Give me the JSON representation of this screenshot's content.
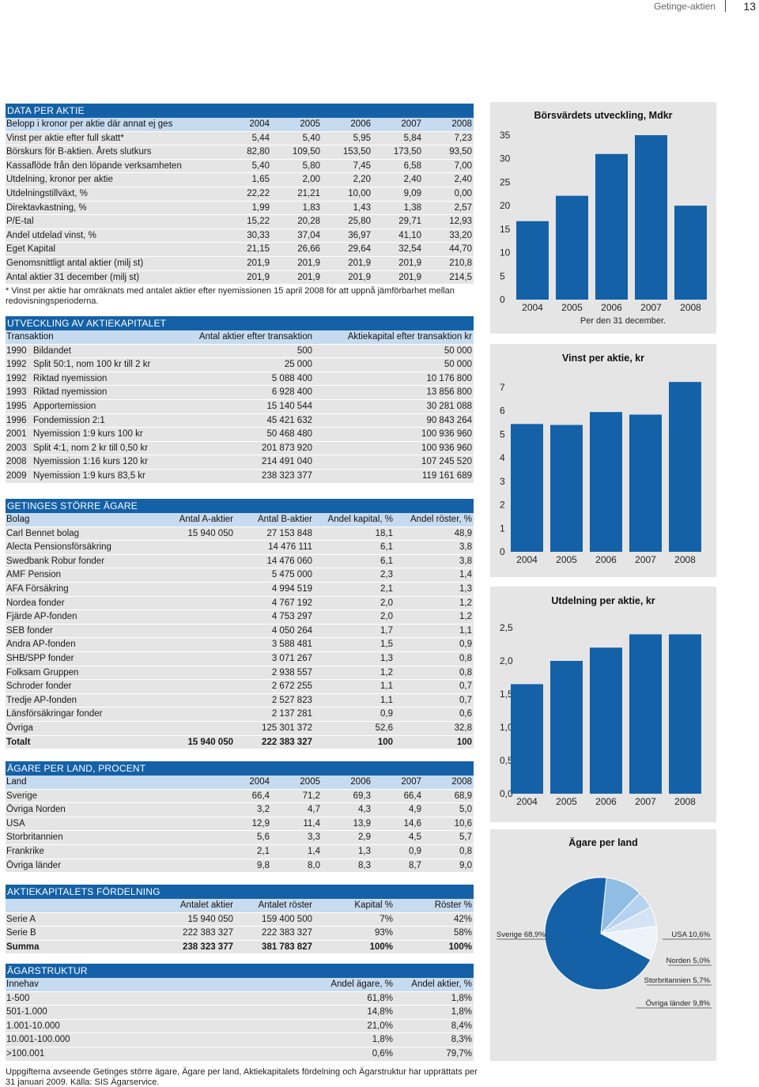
{
  "header": {
    "title": "Getinge-aktien",
    "page_number": "13"
  },
  "data_per_aktie": {
    "title": "DATA PER AKTIE",
    "header": [
      "Belopp i kronor per aktie där annat ej ges",
      "2004",
      "2005",
      "2006",
      "2007",
      "2008"
    ],
    "rows": [
      [
        "Vinst per aktie efter full skatt*",
        "5,44",
        "5,40",
        "5,95",
        "5,84",
        "7,23"
      ],
      [
        "Börskurs för B-aktien. Årets slutkurs",
        "82,80",
        "109,50",
        "153,50",
        "173,50",
        "93,50"
      ],
      [
        "Kassaflöde från den löpande verksamheten",
        "5,40",
        "5,80",
        "7,45",
        "6,58",
        "7,00"
      ],
      [
        "Utdelning, kronor per aktie",
        "1,65",
        "2,00",
        "2,20",
        "2,40",
        "2,40"
      ],
      [
        "Utdelningstillväxt, %",
        "22,22",
        "21,21",
        "10,00",
        "9,09",
        "0,00"
      ],
      [
        "Direktavkastning, %",
        "1,99",
        "1,83",
        "1,43",
        "1,38",
        "2,57"
      ],
      [
        "P/E-tal",
        "15,22",
        "20,28",
        "25,80",
        "29,71",
        "12,93"
      ],
      [
        "Andel utdelad vinst, %",
        "30,33",
        "37,04",
        "36,97",
        "41,10",
        "33,20"
      ],
      [
        "Eget Kapital",
        "21,15",
        "26,66",
        "29,64",
        "32,54",
        "44,70"
      ],
      [
        "Genomsnittligt antal aktier (milj st)",
        "201,9",
        "201,9",
        "201,9",
        "201,9",
        "210,8"
      ],
      [
        "Antal aktier 31 december (milj st)",
        "201,9",
        "201,9",
        "201,9",
        "201,9",
        "214,5"
      ]
    ],
    "footnote": "* Vinst per aktie har omräknats med antalet aktier efter nyemissionen 15 april 2008 för att uppnå jämförbarhet mellan redovisningsperioderna."
  },
  "utveckling": {
    "title": "UTVECKLING AV AKTIEKAPITALET",
    "header": [
      "Transaktion",
      "Antal aktier efter transaktion",
      "Aktiekapital efter transaktion kr"
    ],
    "rows": [
      [
        "1990",
        "Bildandet",
        "500",
        "50 000"
      ],
      [
        "1992",
        "Split 50:1, nom 100 kr till 2 kr",
        "25 000",
        "50 000"
      ],
      [
        "1992",
        "Riktad nyemission",
        "5 088 400",
        "10 176 800"
      ],
      [
        "1993",
        "Riktad nyemission",
        "6 928 400",
        "13 856 800"
      ],
      [
        "1995",
        "Apportemission",
        "15 140 544",
        "30 281 088"
      ],
      [
        "1996",
        "Fondemission 2:1",
        "45 421 632",
        "90 843 264"
      ],
      [
        "2001",
        "Nyemission 1:9 kurs 100 kr",
        "50 468 480",
        "100 936 960"
      ],
      [
        "2003",
        "Split 4:1, nom 2 kr till 0,50 kr",
        "201 873 920",
        "100 936 960"
      ],
      [
        "2008",
        "Nyemission 1:16 kurs 120 kr",
        "214 491 040",
        "107 245 520"
      ],
      [
        "2009",
        "Nyemission 1:9 kurs 83,5 kr",
        "238 323 377",
        "119 161 689"
      ]
    ]
  },
  "agare": {
    "title": "GETINGES STÖRRE ÄGARE",
    "header": [
      "Bolag",
      "Antal A-aktier",
      "Antal B-aktier",
      "Andel kapital, %",
      "Andel röster, %"
    ],
    "rows": [
      [
        "Carl Bennet bolag",
        "15 940 050",
        "27 153 848",
        "18,1",
        "48,9"
      ],
      [
        "Alecta Pensionsförsäkring",
        "",
        "14 476 111",
        "6,1",
        "3,8"
      ],
      [
        "Swedbank Robur fonder",
        "",
        "14 476 060",
        "6,1",
        "3,8"
      ],
      [
        "AMF Pension",
        "",
        "5 475 000",
        "2,3",
        "1,4"
      ],
      [
        "AFA Försäkring",
        "",
        "4 994 519",
        "2,1",
        "1,3"
      ],
      [
        "Nordea fonder",
        "",
        "4 767 192",
        "2,0",
        "1,2"
      ],
      [
        "Fjärde AP-fonden",
        "",
        "4 753 297",
        "2,0",
        "1,2"
      ],
      [
        "SEB fonder",
        "",
        "4 050 264",
        "1,7",
        "1,1"
      ],
      [
        "Andra AP-fonden",
        "",
        "3 588 481",
        "1,5",
        "0,9"
      ],
      [
        "SHB/SPP fonder",
        "",
        "3 071 267",
        "1,3",
        "0,8"
      ],
      [
        "Folksam Gruppen",
        "",
        "2 938 557",
        "1,2",
        "0,8"
      ],
      [
        "Schroder fonder",
        "",
        "2 672 255",
        "1,1",
        "0,7"
      ],
      [
        "Tredje AP-fonden",
        "",
        "2 527 823",
        "1,1",
        "0,7"
      ],
      [
        "Länsförsäkringar fonder",
        "",
        "2 137 281",
        "0,9",
        "0,6"
      ],
      [
        "Övriga",
        "",
        "125 301 372",
        "52,6",
        "32,8"
      ]
    ],
    "total": [
      "Totalt",
      "15 940 050",
      "222 383 327",
      "100",
      "100"
    ]
  },
  "agare_land": {
    "title": "ÄGARE PER LAND, PROCENT",
    "header": [
      "Land",
      "2004",
      "2005",
      "2006",
      "2007",
      "2008"
    ],
    "rows": [
      [
        "Sverige",
        "66,4",
        "71,2",
        "69,3",
        "66,4",
        "68,9"
      ],
      [
        "Övriga Norden",
        "3,2",
        "4,7",
        "4,3",
        "4,9",
        "5,0"
      ],
      [
        "USA",
        "12,9",
        "11,4",
        "13,9",
        "14,6",
        "10,6"
      ],
      [
        "Storbritannien",
        "5,6",
        "3,3",
        "2,9",
        "4,5",
        "5,7"
      ],
      [
        "Frankrike",
        "2,1",
        "1,4",
        "1,3",
        "0,9",
        "0,8"
      ],
      [
        "Övriga länder",
        "9,8",
        "8,0",
        "8,3",
        "8,7",
        "9,0"
      ]
    ]
  },
  "fordelning": {
    "title": "AKTIEKAPITALETS FÖRDELNING",
    "header": [
      "",
      "Antalet aktier",
      "Antalet röster",
      "Kapital %",
      "Röster %"
    ],
    "rows": [
      [
        "Serie A",
        "15 940 050",
        "159 400 500",
        "7%",
        "42%"
      ],
      [
        "Serie B",
        "222 383 327",
        "222 383 327",
        "93%",
        "58%"
      ]
    ],
    "total": [
      "Summa",
      "238 323 377",
      "381 783 827",
      "100%",
      "100%"
    ]
  },
  "struktur": {
    "title": "ÄGARSTRUKTUR",
    "header": [
      "Innehav",
      "Andel ägare, %",
      "Andel aktier, %"
    ],
    "rows": [
      [
        "1-500",
        "61,8%",
        "1,8%"
      ],
      [
        "501-1.000",
        "14,8%",
        "1,8%"
      ],
      [
        "1.001-10.000",
        "21,0%",
        "8,4%"
      ],
      [
        "10.001-100.000",
        "1,8%",
        "8,3%"
      ],
      [
        ">100.001",
        "0,6%",
        "79,7%"
      ]
    ]
  },
  "source_note": "Uppgifterna avseende Getinges större ägare, Ägare per land, Aktiekapitalets fördelning och Ägarstruktur har upprättats per 31 januari 2009. Källa: SIS Ägarservice.",
  "colors": {
    "blue": "#1461a8",
    "light_blue_header": "#c7dbf0",
    "row_gray": "#e5e5e5"
  },
  "chart_data": [
    {
      "type": "bar",
      "title": "Börsvärdets utveckling, Mdkr",
      "subtitle": "Per den 31 december.",
      "categories": [
        "2004",
        "2005",
        "2006",
        "2007",
        "2008"
      ],
      "values": [
        16.7,
        22.1,
        31.0,
        35.0,
        20.0
      ],
      "ylim": [
        0,
        35
      ],
      "yticks": [
        "0",
        "5",
        "10",
        "15",
        "20",
        "25",
        "30",
        "35"
      ]
    },
    {
      "type": "bar",
      "title": "Vinst per aktie, kr",
      "categories": [
        "2004",
        "2005",
        "2006",
        "2007",
        "2008"
      ],
      "values": [
        5.44,
        5.4,
        5.95,
        5.84,
        7.23
      ],
      "ylim": [
        0,
        7
      ],
      "yticks": [
        "0",
        "1",
        "2",
        "3",
        "4",
        "5",
        "6",
        "7"
      ]
    },
    {
      "type": "bar",
      "title": "Utdelning per aktie, kr",
      "categories": [
        "2004",
        "2005",
        "2006",
        "2007",
        "2008"
      ],
      "values": [
        1.65,
        2.0,
        2.2,
        2.4,
        2.4
      ],
      "ylim": [
        0,
        2.5
      ],
      "yticks": [
        "0,0",
        "0,5",
        "1,0",
        "1,5",
        "2,0",
        "2,5"
      ]
    },
    {
      "type": "pie",
      "title": "Ägare per land",
      "labels": [
        "Sverige 68,9%",
        "USA 10,6%",
        "Norden 5,0%",
        "Storbritannien 5,7%",
        "Övriga länder 9,8%"
      ],
      "values": [
        68.9,
        10.6,
        5.0,
        5.7,
        9.8
      ],
      "colors": [
        "#1461a8",
        "#8fbde3",
        "#b5d3ee",
        "#d4e4f4",
        "#eef3fa"
      ]
    }
  ]
}
